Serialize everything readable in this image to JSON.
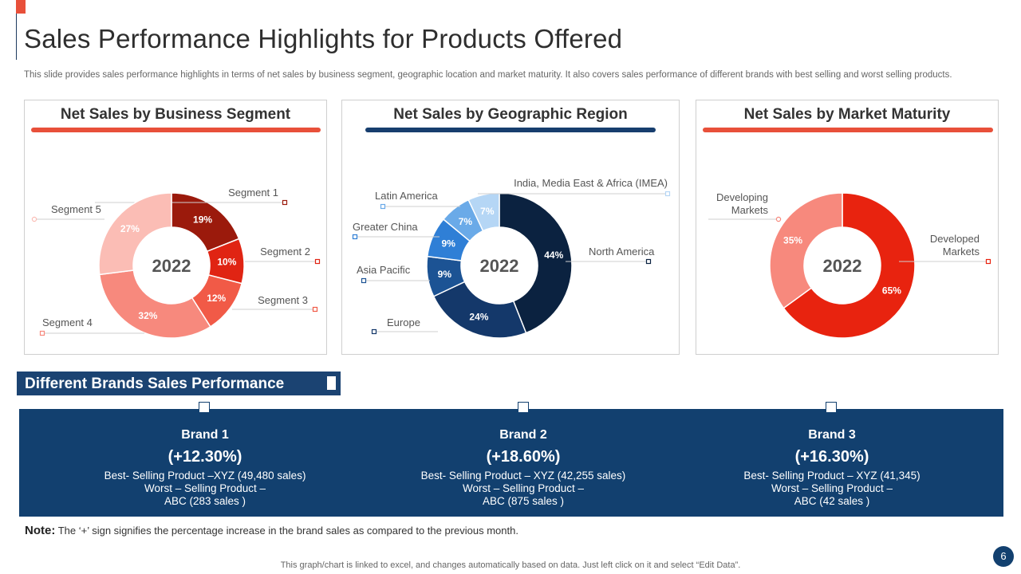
{
  "page": {
    "title": "Sales Performance Highlights for Products Offered",
    "subtitle": "This slide provides sales performance highlights in terms of net sales by business segment, geographic location and market maturity. It also covers sales performance of different brands with best selling and worst selling products.",
    "accent_color": "#e8503a",
    "navy_color": "#12406f"
  },
  "chart_data": [
    {
      "type": "pie",
      "title": "Net Sales by Business Segment",
      "center_label": "2022",
      "slices": [
        {
          "label": "Segment 1",
          "value": 19,
          "display": "19%",
          "color": "#9b1a0c"
        },
        {
          "label": "Segment 2",
          "value": 10,
          "display": "10%",
          "color": "#e02413"
        },
        {
          "label": "Segment 3",
          "value": 12,
          "display": "12%",
          "color": "#f15a47"
        },
        {
          "label": "Segment 4",
          "value": 32,
          "display": "32%",
          "color": "#f7897d"
        },
        {
          "label": "Segment 5",
          "value": 27,
          "display": "27%",
          "color": "#fbbdb5"
        }
      ]
    },
    {
      "type": "pie",
      "title": "Net Sales by Geographic Region",
      "center_label": "2022",
      "slices": [
        {
          "label": "North America",
          "value": 44,
          "display": "44%",
          "color": "#0b2240"
        },
        {
          "label": "Europe",
          "value": 24,
          "display": "24%",
          "color": "#14386a"
        },
        {
          "label": "Asia Pacific",
          "value": 9,
          "display": "9%",
          "color": "#1c5394"
        },
        {
          "label": "Greater China",
          "value": 9,
          "display": "9%",
          "color": "#2f7fd6"
        },
        {
          "label": "Latin America",
          "value": 7,
          "display": "7%",
          "color": "#6aaae8"
        },
        {
          "label": "India, Media East & Africa (IMEA)",
          "value": 7,
          "display": "7%",
          "color": "#b5d6f5"
        }
      ]
    },
    {
      "type": "pie",
      "title": "Net Sales by Market Maturity",
      "center_label": "2022",
      "slices": [
        {
          "label": "Developed\nMarkets",
          "value": 65,
          "display": "65%",
          "color": "#e8230f"
        },
        {
          "label": "Developing\nMarkets",
          "value": 35,
          "display": "35%",
          "color": "#f7897d"
        }
      ]
    }
  ],
  "brands_section": {
    "title": "Different Brands Sales Performance",
    "brands": [
      {
        "name": "Brand 1",
        "change": "(+12.30%)",
        "best": "Best- Selling Product –XYZ  (49,480 sales)",
        "worst": "Worst – Selling Product –",
        "worst_detail": "ABC (283 sales )"
      },
      {
        "name": "Brand 2",
        "change": "(+18.60%)",
        "best": "Best- Selling Product – XYZ  (42,255 sales)",
        "worst": "Worst – Selling Product –",
        "worst_detail": "ABC (875 sales )"
      },
      {
        "name": "Brand 3",
        "change": "(+16.30%)",
        "best": "Best- Selling Product – XYZ   (41,345)",
        "worst": "Worst – Selling Product –",
        "worst_detail": "ABC (42 sales )"
      }
    ]
  },
  "note": {
    "label": "Note:",
    "text": " The ‘+’ sign signifies the percentage increase in the brand sales as compared to the previous month."
  },
  "footer": "This graph/chart is linked to excel,  and changes automatically based on data. Just left click on it and select “Edit Data”.",
  "page_number": "6"
}
